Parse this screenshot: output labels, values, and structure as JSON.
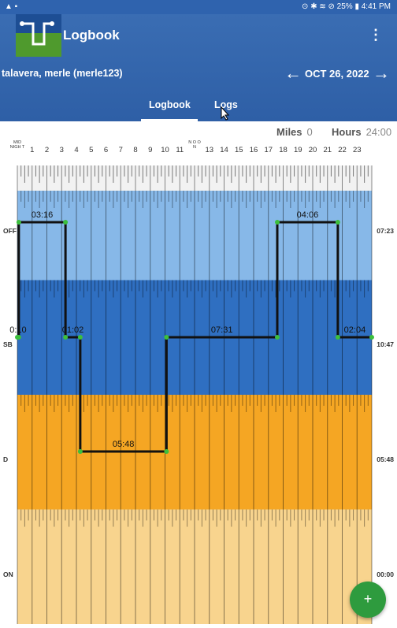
{
  "status_bar": {
    "left_icons": "▲ ▪",
    "right_text": "⊙ ✱ ≋ ⊘ 25% ▮ 4:41 PM"
  },
  "app": {
    "title": "Logbook",
    "overflow_label": "⋮"
  },
  "driver": "talavera, merle (merle123)",
  "date_nav": {
    "prev_label": "←",
    "date": "OCT 26, 2022",
    "next_label": "→"
  },
  "tabs": [
    {
      "label": "Logbook",
      "active": true
    },
    {
      "label": "Logs",
      "active": false
    }
  ],
  "summary": {
    "miles_label": "Miles",
    "miles_value": "0",
    "hours_label": "Hours",
    "hours_value": "24:00"
  },
  "hours": [
    "MID NIGH T",
    "1",
    "2",
    "3",
    "4",
    "5",
    "6",
    "7",
    "8",
    "9",
    "10",
    "11",
    "N O O N",
    "13",
    "14",
    "15",
    "16",
    "17",
    "18",
    "19",
    "20",
    "21",
    "22",
    "23"
  ],
  "rows": [
    {
      "label": "OFF",
      "total": "07:23",
      "color": "#87b8e8"
    },
    {
      "label": "SB",
      "total": "10:47",
      "color": "#2f6fc1"
    },
    {
      "label": "D",
      "total": "05:48",
      "color": "#f5a623"
    },
    {
      "label": "ON",
      "total": "00:00",
      "color": "#f8d48e"
    }
  ],
  "segments": [
    {
      "status": "SB",
      "start": 0.0,
      "end": 0.1,
      "duration": "0:10"
    },
    {
      "status": "OFF",
      "start": 0.1,
      "end": 3.26,
      "duration": "03:16"
    },
    {
      "status": "SB",
      "start": 3.26,
      "end": 4.26,
      "duration": "01:02"
    },
    {
      "status": "D",
      "start": 4.26,
      "end": 10.1,
      "duration": "05:48"
    },
    {
      "status": "SB",
      "start": 10.1,
      "end": 17.6,
      "duration": "07:31"
    },
    {
      "status": "OFF",
      "start": 17.6,
      "end": 21.7,
      "duration": "04:06"
    },
    {
      "status": "SB",
      "start": 21.7,
      "end": 24.0,
      "duration": "02:04"
    }
  ],
  "fab_label": "+",
  "colors": {
    "appbar": "#3a6db3",
    "fab": "#2e9b3e",
    "line": "#111111",
    "node": "#3cbf3c"
  }
}
